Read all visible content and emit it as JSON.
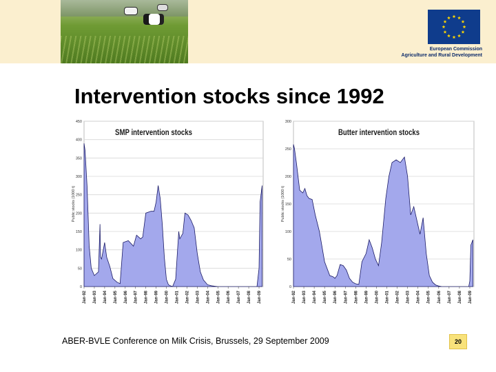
{
  "slide": {
    "title": "Intervention stocks since 1992",
    "footer": "ABER-BVLE Conference on Milk Crisis, Brussels, 29 September 2009",
    "page_number": "20"
  },
  "header": {
    "org_line1": "European Commission",
    "org_line2": "Agriculture and Rural Development",
    "photo_icon": "cows-in-meadow-photo",
    "flag_icon": "eu-flag-icon",
    "colors": {
      "band": "#fbefcf",
      "flag": "#0f3c8c",
      "stars": "#ffd700",
      "badge": "#f8e27b"
    }
  },
  "chart_data": [
    {
      "type": "area",
      "title": "SMP intervention stocks",
      "ylabel": "Public stocks (1000 t)",
      "ylim": [
        0,
        450
      ],
      "yticks": [
        "0",
        "50",
        "100",
        "150",
        "200",
        "250",
        "300",
        "350",
        "400",
        "450"
      ],
      "xticks": [
        "Jan-92",
        "Jan-93",
        "Jan-94",
        "Jan-95",
        "Jan-96",
        "Jan-97",
        "Jan-98",
        "Jan-99",
        "Jan-00",
        "Jan-01",
        "Jan-02",
        "Jan-03",
        "Jan-04",
        "Jan-05",
        "Jan-06",
        "Jan-07",
        "Jan-08",
        "Jan-09"
      ],
      "fill": "#a3a8ec",
      "stroke": "#1a1a66",
      "x": [
        0,
        0.1,
        0.3,
        0.5,
        0.7,
        1.0,
        1.4,
        1.55,
        1.6,
        1.7,
        2.0,
        2.2,
        2.5,
        2.8,
        3.2,
        3.5,
        3.8,
        4.3,
        4.8,
        5.1,
        5.5,
        5.7,
        6.0,
        6.5,
        6.8,
        7.0,
        7.2,
        7.4,
        7.6,
        7.8,
        8.0,
        8.2,
        8.4,
        8.6,
        8.9,
        9.2,
        9.3,
        9.6,
        9.8,
        10.1,
        10.4,
        10.7,
        11.0,
        11.3,
        11.6,
        12.0,
        12.4,
        13.0,
        14.0,
        15.0,
        16.0,
        16.5,
        16.8,
        17.0,
        17.1,
        17.3
      ],
      "y": [
        390,
        370,
        270,
        110,
        50,
        30,
        40,
        170,
        80,
        75,
        120,
        80,
        55,
        22,
        12,
        8,
        120,
        125,
        110,
        140,
        130,
        135,
        200,
        205,
        205,
        230,
        275,
        240,
        170,
        80,
        20,
        5,
        2,
        0,
        20,
        150,
        130,
        145,
        200,
        195,
        180,
        160,
        90,
        40,
        18,
        5,
        2,
        0,
        0,
        0,
        0,
        0,
        0,
        50,
        230,
        275
      ]
    },
    {
      "type": "area",
      "title": "Butter intervention stocks",
      "ylabel": "Public stocks (1000 t)",
      "ylim": [
        0,
        300
      ],
      "yticks": [
        "0",
        "50",
        "100",
        "150",
        "200",
        "250",
        "300"
      ],
      "xticks": [
        "Jan-92",
        "Jan-93",
        "Jan-94",
        "Jan-95",
        "Jan-96",
        "Jan-97",
        "Jan-98",
        "Jan-99",
        "Jan-00",
        "Jan-01",
        "Jan-02",
        "Jan-03",
        "Jan-04",
        "Jan-05",
        "Jan-06",
        "Jan-07",
        "Jan-08",
        "Jan-09"
      ],
      "fill": "#a3a8ec",
      "stroke": "#1a1a66",
      "x": [
        0,
        0.1,
        0.3,
        0.6,
        0.9,
        1.1,
        1.3,
        1.5,
        1.8,
        2.1,
        2.5,
        3.0,
        3.5,
        3.8,
        4.0,
        4.2,
        4.5,
        4.8,
        5.1,
        5.4,
        5.7,
        6.0,
        6.3,
        6.6,
        7.0,
        7.3,
        7.6,
        7.9,
        8.2,
        8.5,
        8.9,
        9.2,
        9.5,
        9.9,
        10.3,
        10.7,
        11.0,
        11.3,
        11.6,
        11.9,
        12.2,
        12.5,
        12.8,
        13.1,
        13.4,
        13.7,
        14.0,
        14.3,
        14.6,
        14.9,
        15.2,
        15.6,
        16.0,
        16.5,
        16.9,
        17.0,
        17.1,
        17.3
      ],
      "y": [
        258,
        250,
        222,
        175,
        170,
        178,
        165,
        160,
        158,
        130,
        100,
        45,
        20,
        18,
        15,
        20,
        40,
        38,
        30,
        15,
        8,
        5,
        4,
        45,
        60,
        85,
        70,
        50,
        38,
        80,
        160,
        200,
        225,
        230,
        225,
        235,
        200,
        130,
        145,
        120,
        95,
        125,
        60,
        20,
        8,
        3,
        1,
        0,
        0,
        0,
        0,
        0,
        0,
        0,
        0,
        10,
        75,
        85
      ]
    }
  ]
}
